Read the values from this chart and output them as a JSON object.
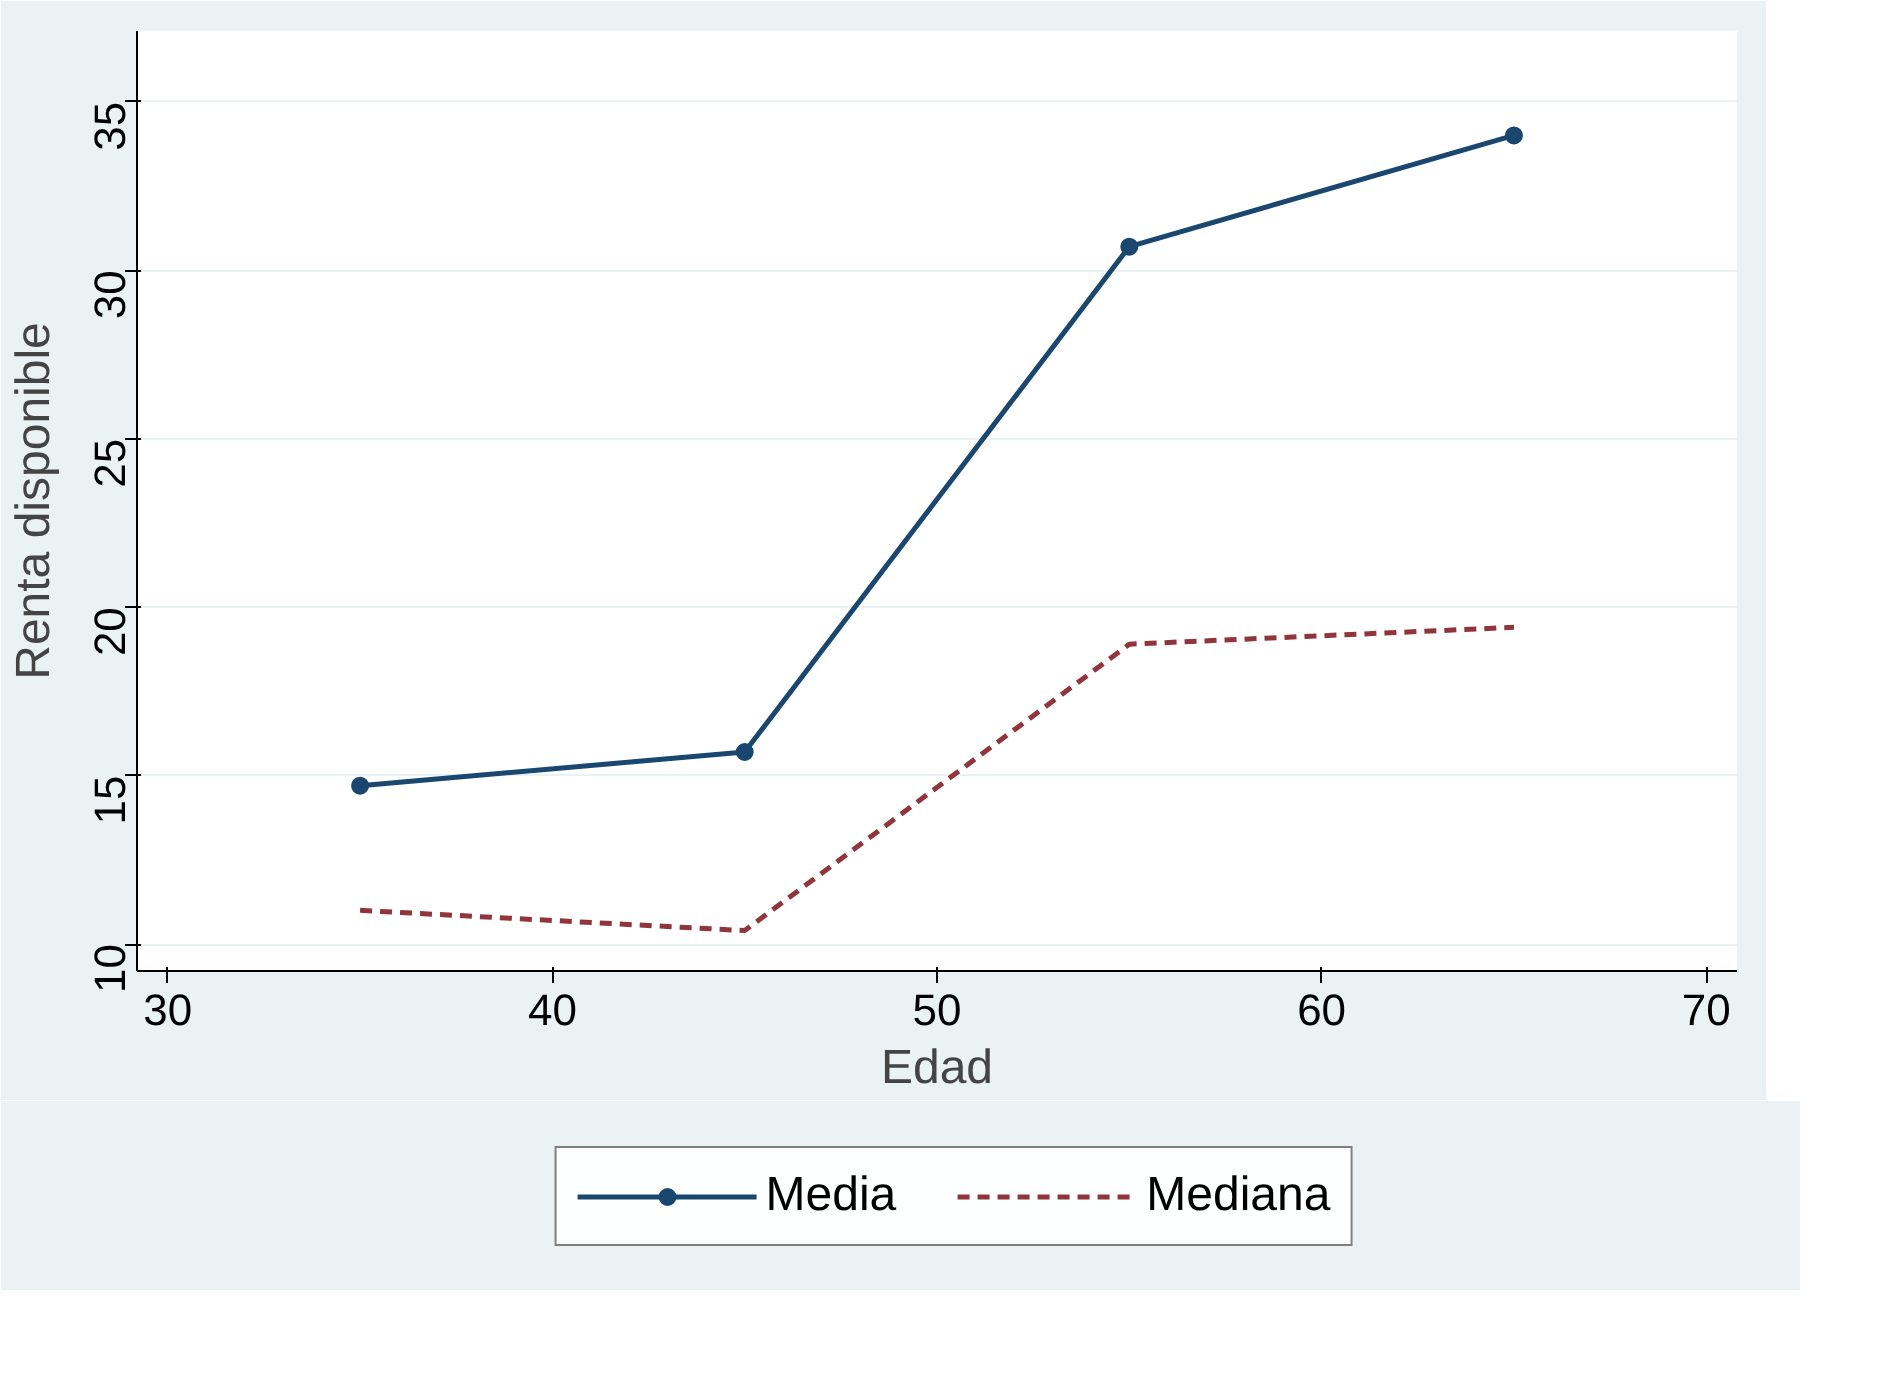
{
  "chart_data": {
    "type": "line",
    "xlabel": "Edad",
    "ylabel": "Renta disponible",
    "x": [
      35,
      45,
      55,
      65
    ],
    "series": [
      {
        "name": "Media",
        "color": "#1a476f",
        "values": [
          14.7,
          15.7,
          30.7,
          34.0
        ],
        "marker": "circle",
        "line_style": "solid"
      },
      {
        "name": "Mediana",
        "color": "#90353b",
        "values": [
          11.0,
          10.4,
          18.9,
          19.4
        ],
        "marker": "none",
        "line_style": "dashed"
      }
    ],
    "xlim": [
      29.2,
      70.8
    ],
    "ylim": [
      9.2,
      37.1
    ],
    "xticks": [
      30,
      40,
      50,
      60,
      70
    ],
    "yticks": [
      10,
      15,
      20,
      25,
      30,
      35
    ],
    "grid": "y",
    "legend": "bottom"
  }
}
